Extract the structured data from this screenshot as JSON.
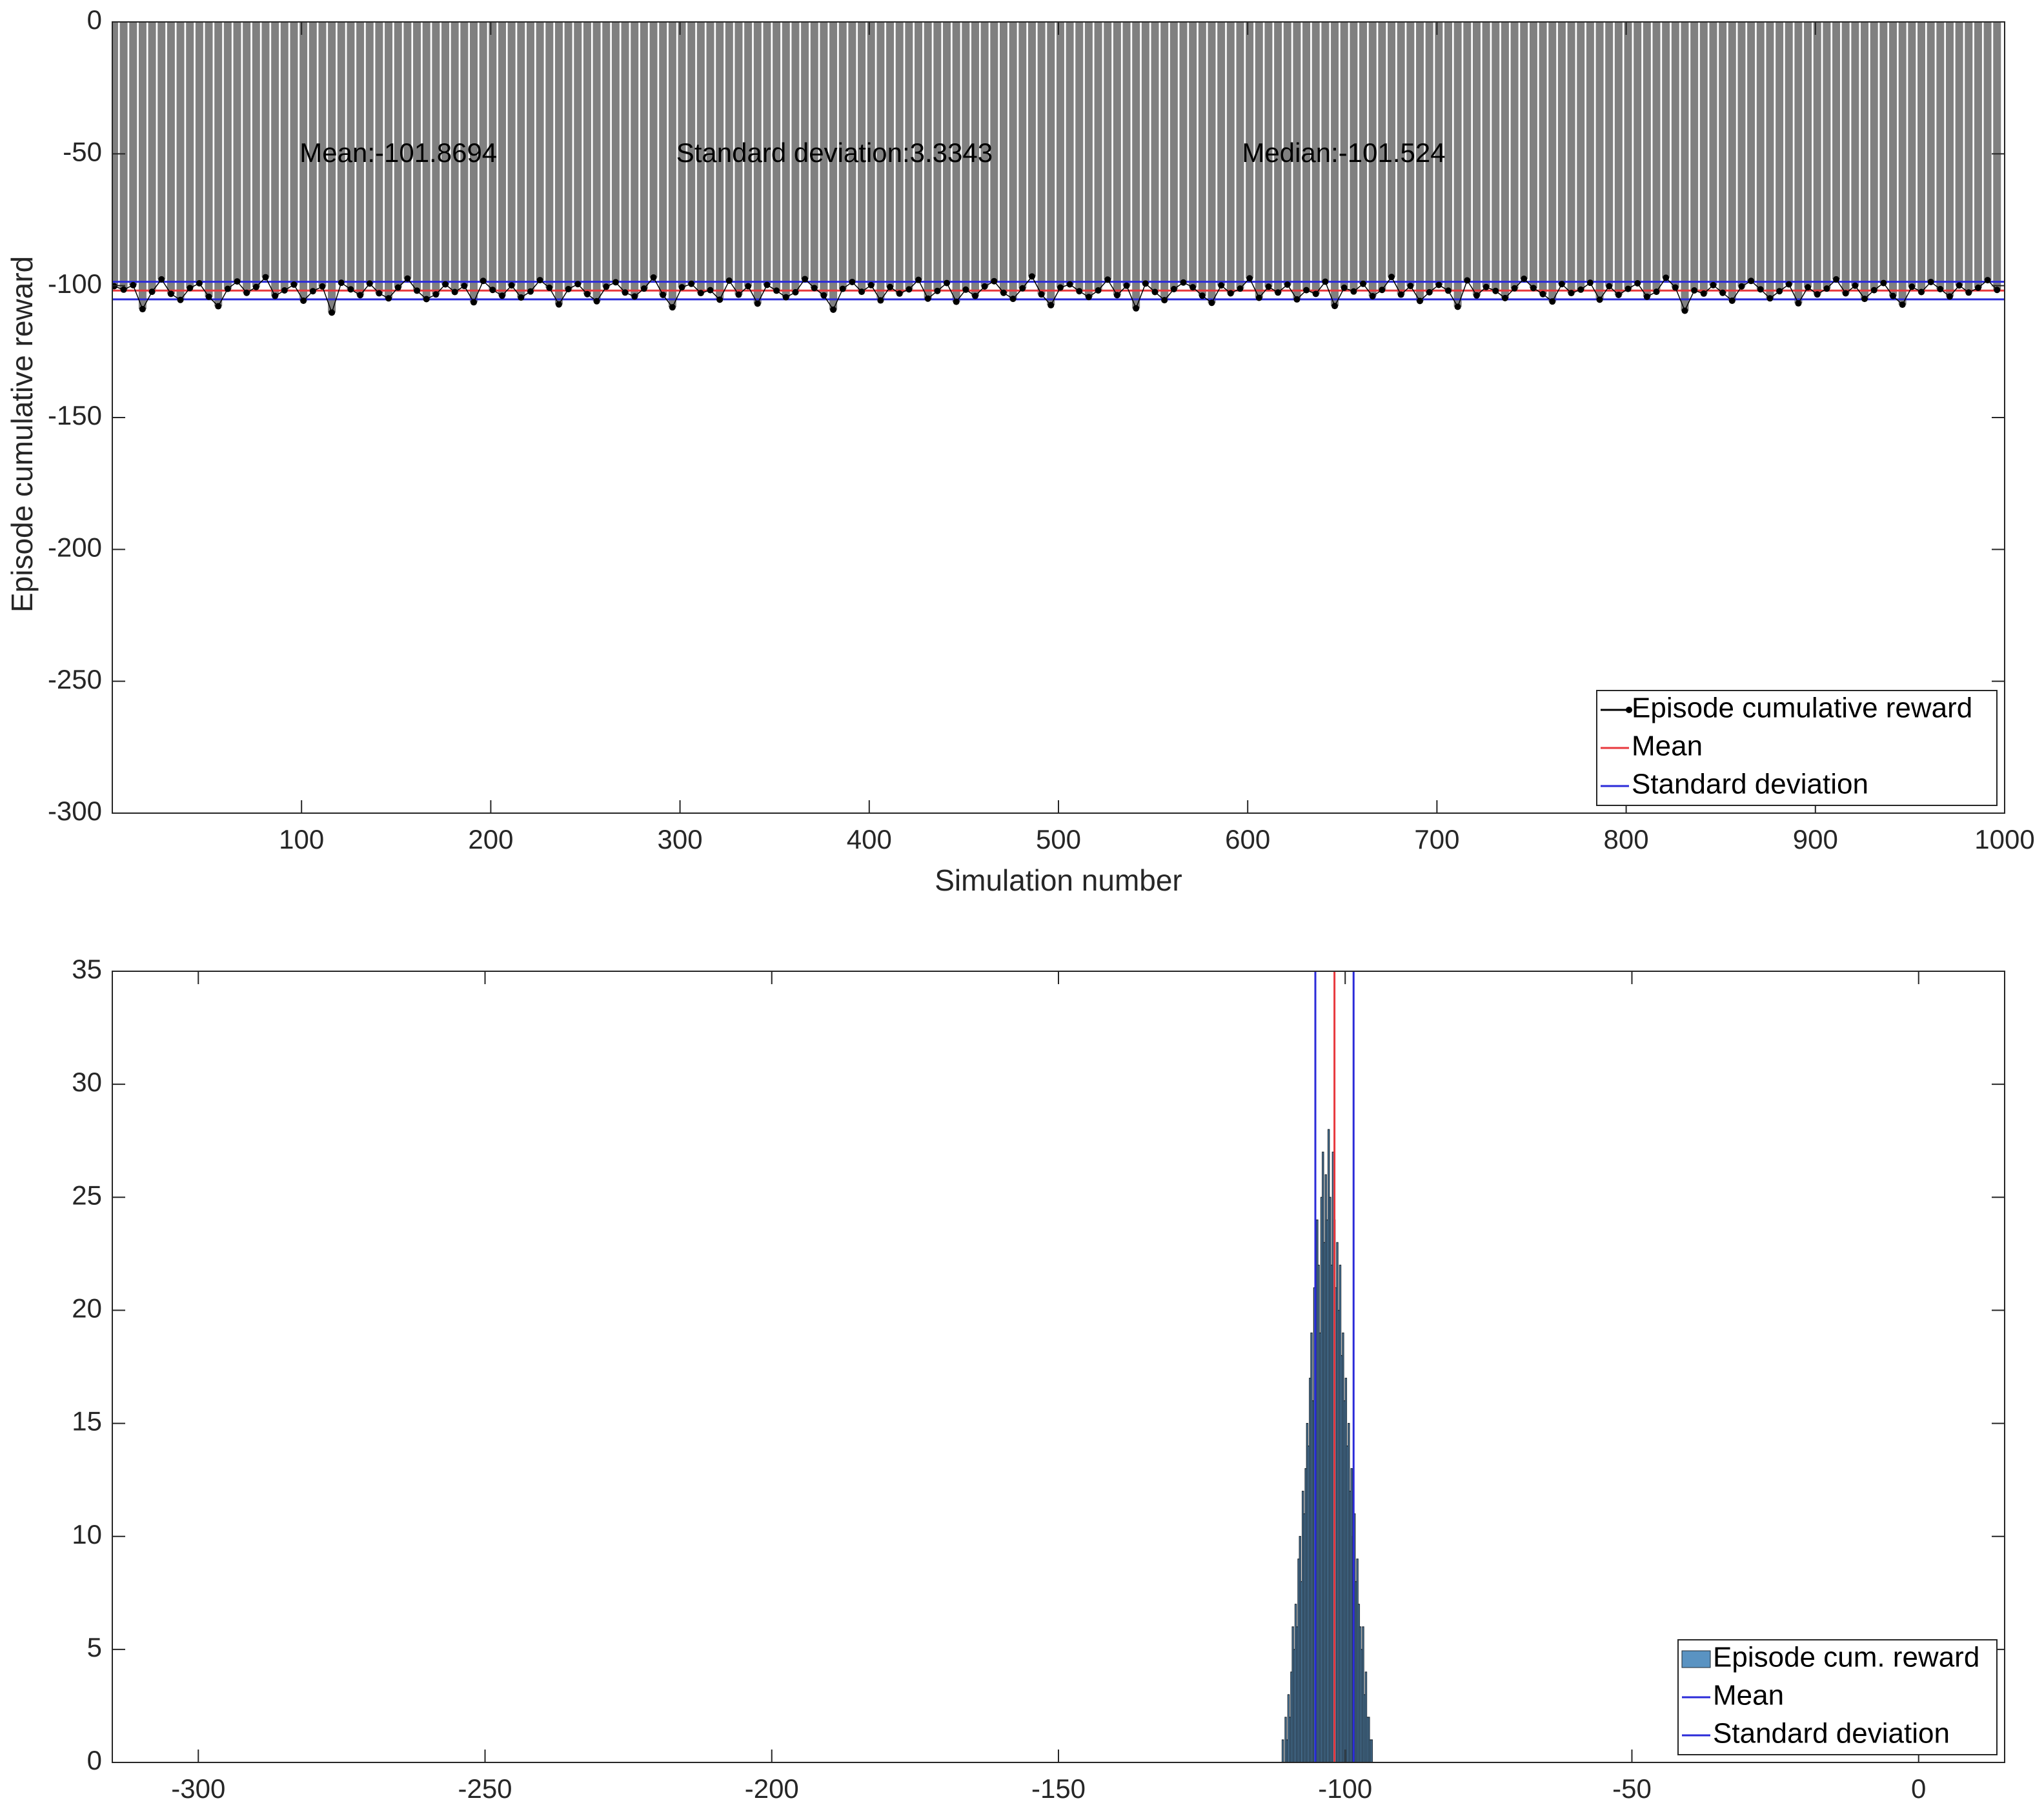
{
  "chart_data": [
    {
      "type": "stem",
      "y_label": "Episode cumulative reward",
      "x_label": "Simulation number",
      "annotations": [
        "Mean:-101.8694",
        "Standard deviation:3.3343",
        "Median:-101.524"
      ],
      "xlim": [
        0,
        1000
      ],
      "xticks": [
        100,
        200,
        300,
        400,
        500,
        600,
        700,
        800,
        900,
        1000
      ],
      "ylim": [
        -300,
        0
      ],
      "yticks": [
        -300,
        -250,
        -200,
        -150,
        -100,
        -50,
        0
      ],
      "stem_color": "#808080",
      "x": [
        1,
        6,
        11,
        16,
        21,
        26,
        31,
        36,
        41,
        46,
        51,
        56,
        61,
        66,
        71,
        76,
        81,
        86,
        91,
        96,
        101,
        106,
        111,
        116,
        121,
        126,
        131,
        136,
        141,
        146,
        151,
        156,
        161,
        166,
        171,
        176,
        181,
        186,
        191,
        196,
        201,
        206,
        211,
        216,
        221,
        226,
        231,
        236,
        241,
        246,
        251,
        256,
        261,
        266,
        271,
        276,
        281,
        286,
        291,
        296,
        301,
        306,
        311,
        316,
        321,
        326,
        331,
        336,
        341,
        346,
        351,
        356,
        361,
        366,
        371,
        376,
        381,
        386,
        391,
        396,
        401,
        406,
        411,
        416,
        421,
        426,
        431,
        436,
        441,
        446,
        451,
        456,
        461,
        466,
        471,
        476,
        481,
        486,
        491,
        496,
        501,
        506,
        511,
        516,
        521,
        526,
        531,
        536,
        541,
        546,
        551,
        556,
        561,
        566,
        571,
        576,
        581,
        586,
        591,
        596,
        601,
        606,
        611,
        616,
        621,
        626,
        631,
        636,
        641,
        646,
        651,
        656,
        661,
        666,
        671,
        676,
        681,
        686,
        691,
        696,
        701,
        706,
        711,
        716,
        721,
        726,
        731,
        736,
        741,
        746,
        751,
        756,
        761,
        766,
        771,
        776,
        781,
        786,
        791,
        796,
        801,
        806,
        811,
        816,
        821,
        826,
        831,
        836,
        841,
        846,
        851,
        856,
        861,
        866,
        871,
        876,
        881,
        886,
        891,
        896,
        901,
        906,
        911,
        916,
        921,
        926,
        931,
        936,
        941,
        946,
        951,
        956,
        961,
        966,
        971,
        976,
        981,
        986,
        991,
        996
      ],
      "series": [
        {
          "name": "Episode cumulative reward",
          "color": "#000000",
          "values": [
            -100.2,
            -101.5,
            -99.8,
            -108.9,
            -102.3,
            -97.6,
            -103.1,
            -105.4,
            -100.9,
            -99.1,
            -104.2,
            -107.8,
            -101.2,
            -98.4,
            -102.7,
            -100.5,
            -96.8,
            -103.9,
            -101.8,
            -99.6,
            -105.7,
            -102.1,
            -100.3,
            -110.2,
            -98.9,
            -101.4,
            -103.6,
            -99.2,
            -102.9,
            -104.8,
            -100.7,
            -97.3,
            -101.9,
            -105.1,
            -103.3,
            -99.5,
            -102.4,
            -100.1,
            -106.3,
            -98.2,
            -101.6,
            -103.8,
            -99.9,
            -104.5,
            -102.2,
            -97.9,
            -100.8,
            -107.1,
            -101.3,
            -99.4,
            -103.2,
            -105.9,
            -100.4,
            -98.7,
            -102.6,
            -104.1,
            -101.1,
            -96.9,
            -103.5,
            -108.2,
            -100.6,
            -99.3,
            -102.8,
            -101.7,
            -105.3,
            -98.1,
            -103.4,
            -100.2,
            -106.8,
            -99.7,
            -101.9,
            -104.4,
            -102.5,
            -97.5,
            -100.9,
            -103.7,
            -109.1,
            -101.2,
            -98.6,
            -102.3,
            -99.8,
            -105.6,
            -100.5,
            -103.0,
            -101.4,
            -97.8,
            -104.9,
            -102.0,
            -99.0,
            -106.1,
            -101.5,
            -103.9,
            -100.3,
            -98.3,
            -102.7,
            -105.0,
            -101.0,
            -96.5,
            -103.3,
            -107.4,
            -100.7,
            -99.5,
            -102.1,
            -104.3,
            -101.8,
            -97.7,
            -103.6,
            -100.0,
            -108.6,
            -99.2,
            -102.4,
            -105.5,
            -101.3,
            -98.8,
            -100.6,
            -103.8,
            -106.5,
            -99.9,
            -102.9,
            -101.1,
            -97.2,
            -104.6,
            -100.4,
            -102.6,
            -99.6,
            -105.2,
            -101.7,
            -103.1,
            -98.5,
            -107.7,
            -100.8,
            -102.2,
            -99.3,
            -104.0,
            -101.6,
            -96.7,
            -103.4,
            -100.1,
            -105.8,
            -102.5,
            -99.7,
            -101.9,
            -108.0,
            -98.0,
            -103.7,
            -100.5,
            -102.0,
            -104.7,
            -101.0,
            -97.4,
            -100.9,
            -103.2,
            -106.0,
            -99.4,
            -102.8,
            -101.5,
            -98.9,
            -105.3,
            -100.2,
            -103.5,
            -101.2,
            -99.1,
            -104.2,
            -102.3,
            -97.0,
            -100.7,
            -109.5,
            -101.8,
            -103.0,
            -99.8,
            -102.7,
            -105.7,
            -100.3,
            -98.2,
            -101.4,
            -104.8,
            -102.1,
            -99.5,
            -106.7,
            -100.6,
            -103.3,
            -101.1,
            -97.6,
            -102.9,
            -100.0,
            -105.0,
            -101.7,
            -99.0,
            -103.9,
            -107.2,
            -100.4,
            -102.4,
            -98.6,
            -101.3,
            -104.1,
            -99.9,
            -102.6,
            -100.8,
            -97.9,
            -101.6
          ]
        }
      ],
      "reference_lines": [
        {
          "name": "Mean",
          "color": "#e8383d",
          "values": [
            -101.8694
          ]
        },
        {
          "name": "Standard deviation",
          "color": "#2b2bd9",
          "values": [
            -98.5351,
            -105.2037
          ]
        }
      ],
      "legend": "lower right"
    },
    {
      "type": "histogram",
      "xlim": [
        -315,
        15
      ],
      "xticks": [
        -300,
        -250,
        -200,
        -150,
        -100,
        -50,
        0
      ],
      "ylim": [
        0,
        35
      ],
      "yticks": [
        0,
        5,
        10,
        15,
        20,
        25,
        30,
        35
      ],
      "bins": [
        -111,
        -110.75,
        -110.5,
        -110.25,
        -110,
        -109.75,
        -109.5,
        -109.25,
        -109,
        -108.75,
        -108.5,
        -108.25,
        -108,
        -107.75,
        -107.5,
        -107.25,
        -107,
        -106.75,
        -106.5,
        -106.25,
        -106,
        -105.75,
        -105.5,
        -105.25,
        -105,
        -104.75,
        -104.5,
        -104.25,
        -104,
        -103.75,
        -103.5,
        -103.25,
        -103,
        -102.75,
        -102.5,
        -102.25,
        -102,
        -101.75,
        -101.5,
        -101.25,
        -101,
        -100.75,
        -100.5,
        -100.25,
        -100,
        -99.75,
        -99.5,
        -99.25,
        -99,
        -98.75,
        -98.5,
        -98.25,
        -98,
        -97.75,
        -97.5,
        -97.25,
        -97,
        -96.75,
        -96.5,
        -96.25,
        -96,
        -95.75,
        -95.5,
        -95.25,
        -95
      ],
      "series": [
        {
          "name": "Episode cum. reward",
          "color": "#5a93c2",
          "values": [
            1,
            0,
            2,
            1,
            3,
            2,
            4,
            6,
            5,
            7,
            6,
            9,
            10,
            8,
            12,
            11,
            13,
            15,
            14,
            17,
            19,
            16,
            21,
            20,
            24,
            22,
            19,
            25,
            27,
            23,
            26,
            24,
            28,
            25,
            22,
            27,
            24,
            21,
            23,
            20,
            22,
            18,
            19,
            16,
            17,
            14,
            15,
            12,
            13,
            10,
            11,
            8,
            9,
            7,
            6,
            5,
            6,
            3,
            4,
            2,
            2,
            1,
            1,
            0
          ]
        }
      ],
      "reference_lines": [
        {
          "name": "Mean",
          "color": "#2b2bd9",
          "values": [
            -101.8694
          ]
        },
        {
          "name": "Standard deviation",
          "color": "#2b2bd9",
          "values": [
            -98.5351,
            -105.2037
          ]
        }
      ],
      "mean_line_color": "#e8383d",
      "legend": "lower right"
    }
  ]
}
